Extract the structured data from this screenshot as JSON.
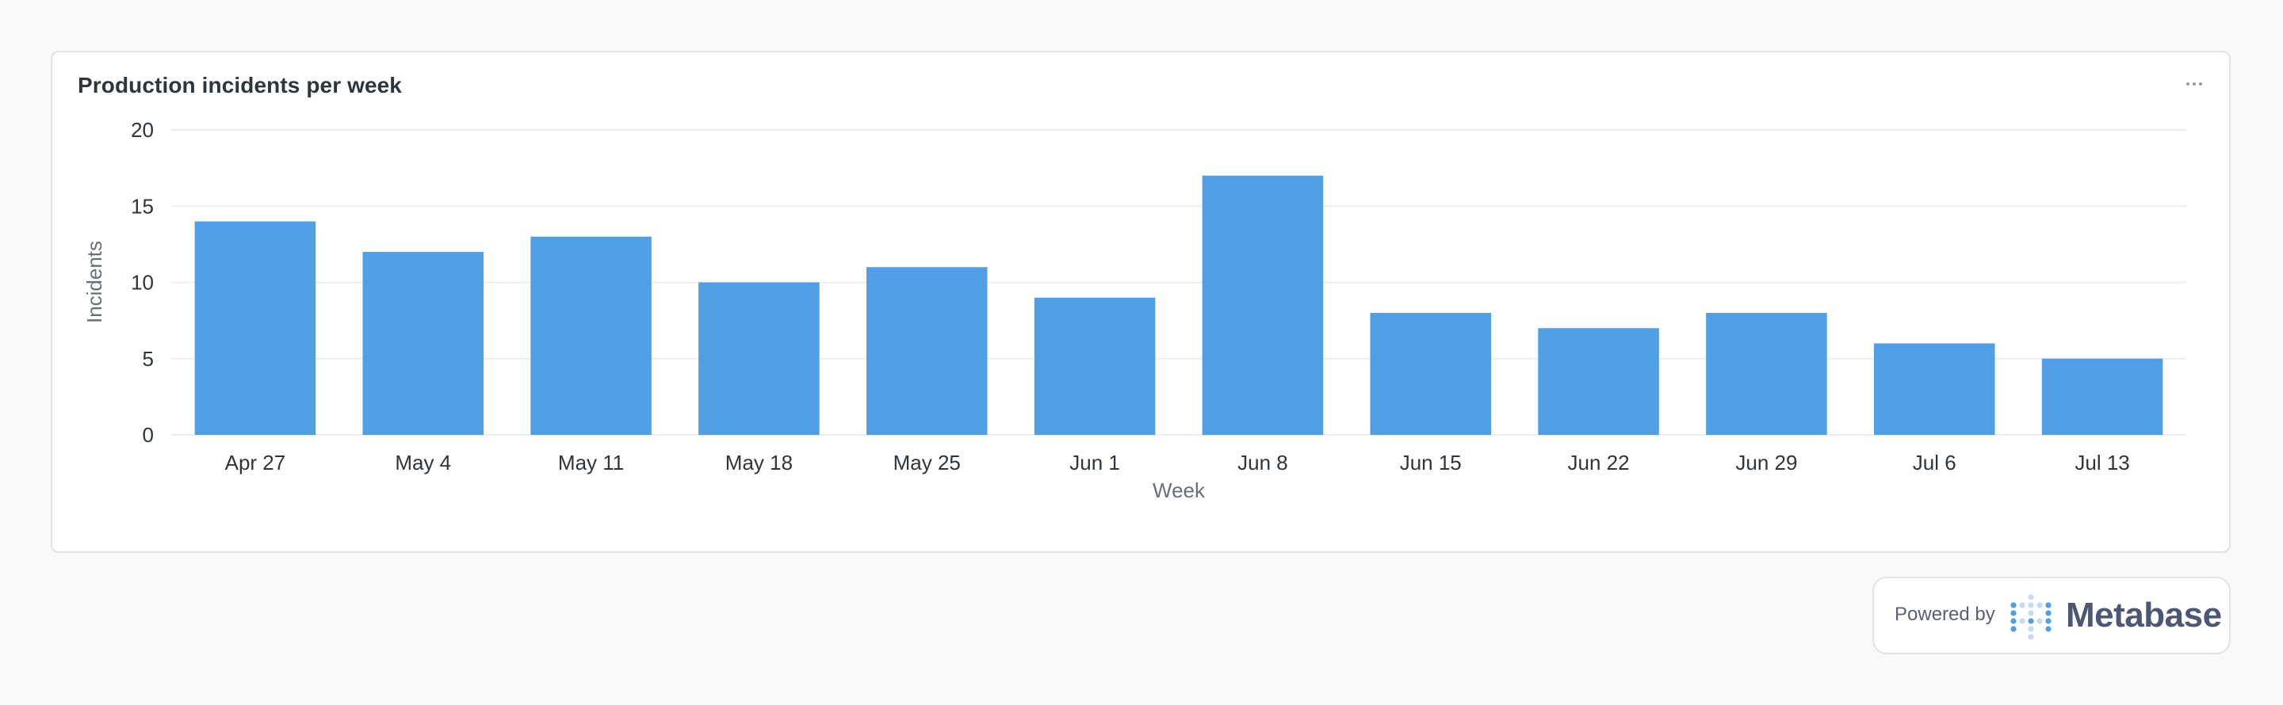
{
  "card": {
    "title": "Production incidents per week"
  },
  "footer": {
    "powered_by": "Powered by",
    "brand": "Metabase"
  },
  "colors": {
    "bar": "#509ee3",
    "grid": "#eceff1",
    "logo_dark": "#509ee3",
    "logo_light": "#c3dcf3"
  },
  "chart_data": {
    "type": "bar",
    "title": "Production incidents per week",
    "xlabel": "Week",
    "ylabel": "Incidents",
    "categories": [
      "Apr 27",
      "May 4",
      "May 11",
      "May 18",
      "May 25",
      "Jun 1",
      "Jun 8",
      "Jun 15",
      "Jun 22",
      "Jun 29",
      "Jul 6",
      "Jul 13"
    ],
    "values": [
      14,
      12,
      13,
      10,
      11,
      9,
      17,
      8,
      7,
      8,
      6,
      5
    ],
    "ylim": [
      0,
      20
    ],
    "yticks": [
      0,
      5,
      10,
      15,
      20
    ],
    "grid": true,
    "legend": "none"
  }
}
